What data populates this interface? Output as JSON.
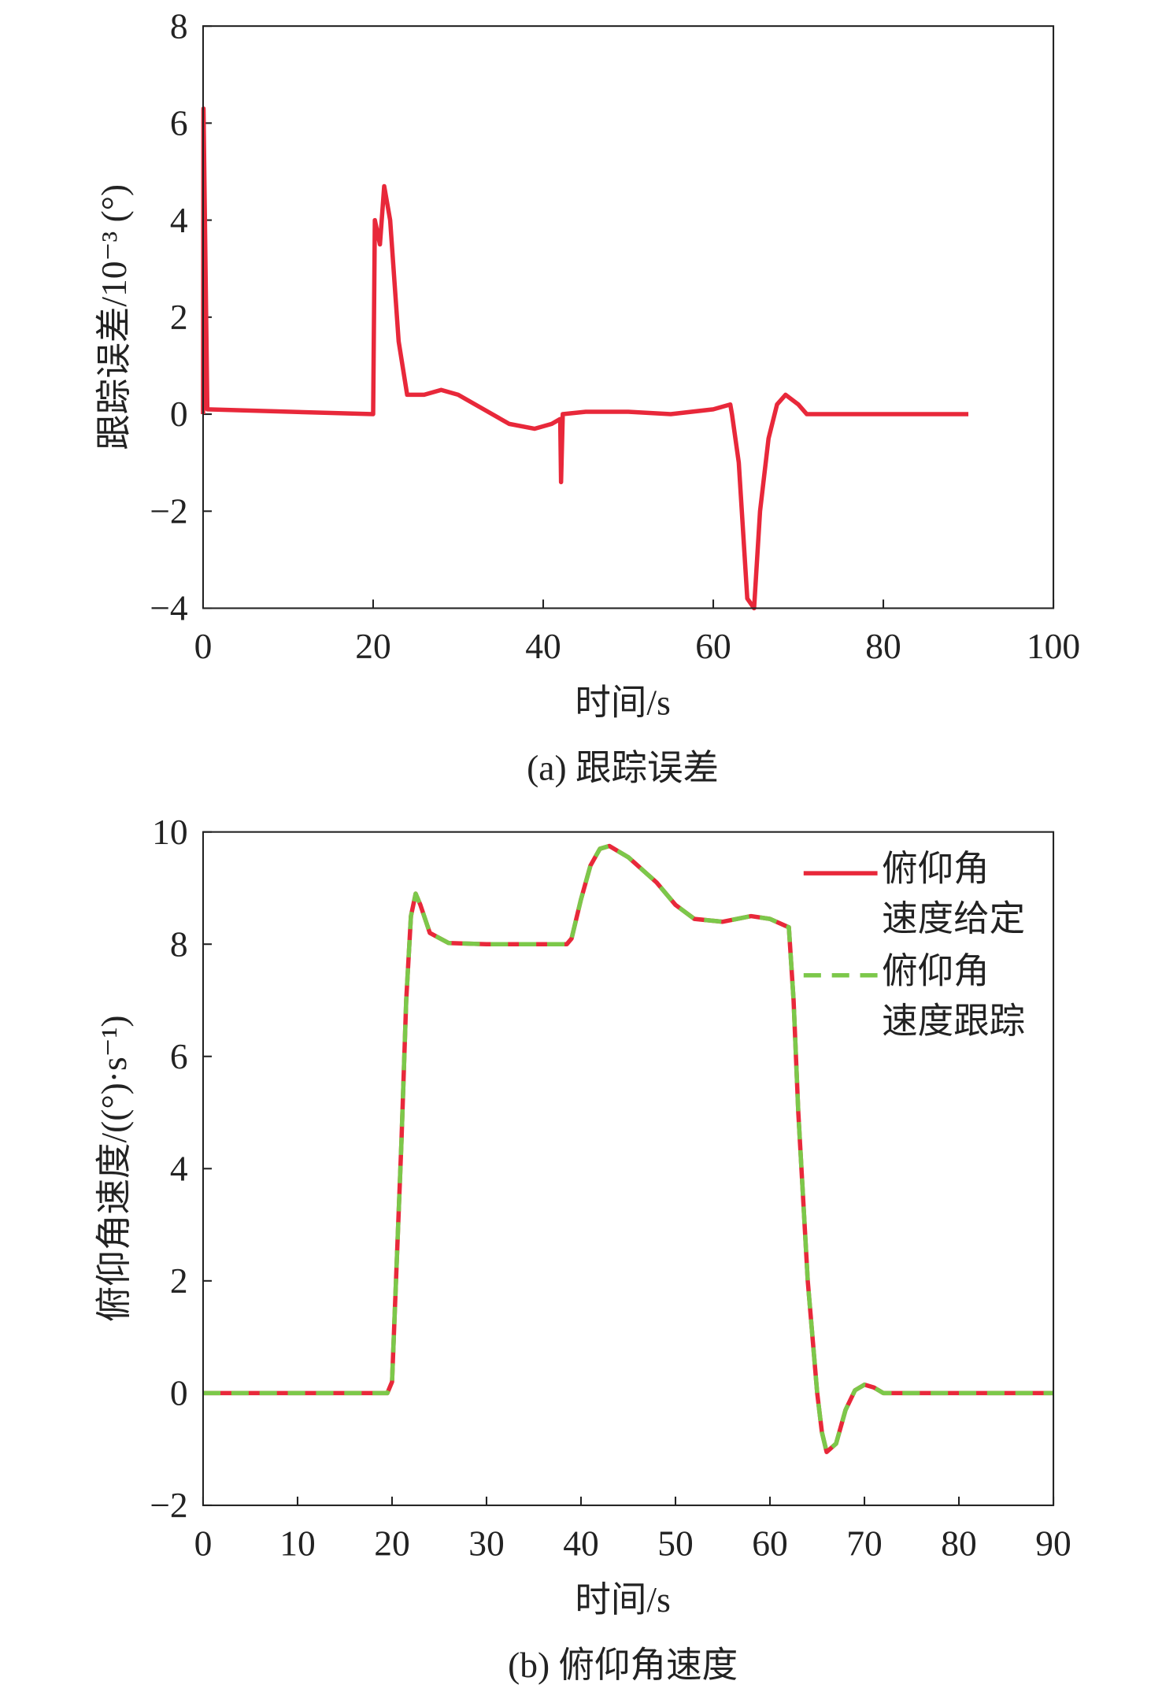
{
  "chart_data": [
    {
      "type": "line",
      "ylabel": "跟踪误差/10⁻³ (°)",
      "xlabel": "时间/s",
      "caption": "(a) 跟踪误差",
      "xlim": [
        0,
        100
      ],
      "xticks": [
        0,
        20,
        40,
        60,
        80,
        100
      ],
      "ylim": [
        -4,
        8
      ],
      "yticks": [
        {
          "value": -4,
          "label": "−4"
        },
        {
          "value": -2,
          "label": "−2"
        },
        0,
        2,
        4,
        6,
        8
      ],
      "x": [
        0,
        0.05,
        0.5,
        20,
        20.2,
        20.8,
        21.3,
        22,
        23,
        24,
        26,
        28,
        30,
        33,
        36,
        39,
        41,
        42,
        42.1,
        42.3,
        45,
        50,
        55,
        60,
        62,
        62.2,
        63,
        64,
        64.8,
        65.5,
        66.5,
        67.5,
        68.5,
        70,
        71,
        80,
        90
      ],
      "series": [
        {
          "color": "#e8283a",
          "style": "solid",
          "values": [
            0,
            6.3,
            0.1,
            0,
            4.0,
            3.5,
            4.7,
            4.0,
            1.5,
            0.4,
            0.4,
            0.5,
            0.4,
            0.1,
            -0.2,
            -0.3,
            -0.2,
            -0.1,
            -1.4,
            0,
            0.05,
            0.05,
            0,
            0.1,
            0.2,
            0,
            -1,
            -3.8,
            -4,
            -2,
            -0.5,
            0.2,
            0.4,
            0.2,
            0,
            0,
            0
          ]
        }
      ]
    },
    {
      "type": "line",
      "ylabel": "俯仰角速度/((°)·s⁻¹)",
      "xlabel": "时间/s",
      "caption": "(b) 俯仰角速度",
      "xlim": [
        0,
        90
      ],
      "xticks": [
        0,
        10,
        20,
        30,
        40,
        50,
        60,
        70,
        80,
        90
      ],
      "ylim": [
        -2,
        10
      ],
      "yticks": [
        {
          "value": -2,
          "label": "−2"
        },
        0,
        2,
        4,
        6,
        8,
        10
      ],
      "legend": "upper right",
      "x": [
        0,
        19.5,
        20,
        21,
        21.5,
        22,
        22.5,
        23,
        24,
        26,
        30,
        35,
        38.5,
        39,
        40,
        41,
        42,
        43,
        45,
        48,
        50,
        52,
        55,
        58,
        60,
        62,
        62.5,
        63,
        64,
        65,
        65.5,
        66,
        67,
        68,
        69,
        70,
        71,
        72,
        73,
        80,
        90
      ],
      "series": [
        {
          "name": "俯仰角\n速度给定",
          "color": "#e8283a",
          "style": "solid",
          "values": [
            0,
            0,
            0.2,
            4.5,
            7,
            8.5,
            8.9,
            8.7,
            8.2,
            8.02,
            8,
            8,
            8,
            8.1,
            8.8,
            9.4,
            9.7,
            9.75,
            9.55,
            9.1,
            8.7,
            8.45,
            8.4,
            8.5,
            8.45,
            8.3,
            7,
            5,
            2,
            0,
            -0.7,
            -1.05,
            -0.9,
            -0.3,
            0.05,
            0.15,
            0.1,
            0,
            0,
            0,
            0
          ]
        },
        {
          "name": "俯仰角\n速度跟踪",
          "color": "#7cc84a",
          "style": "dashed",
          "values": [
            0,
            0,
            0.2,
            4.5,
            7,
            8.5,
            8.9,
            8.7,
            8.2,
            8.02,
            8,
            8,
            8,
            8.1,
            8.8,
            9.4,
            9.7,
            9.75,
            9.55,
            9.1,
            8.7,
            8.45,
            8.4,
            8.5,
            8.45,
            8.3,
            7,
            5,
            2,
            0,
            -0.7,
            -1.05,
            -0.9,
            -0.3,
            0.05,
            0.15,
            0.1,
            0,
            0,
            0,
            0
          ]
        }
      ]
    }
  ]
}
